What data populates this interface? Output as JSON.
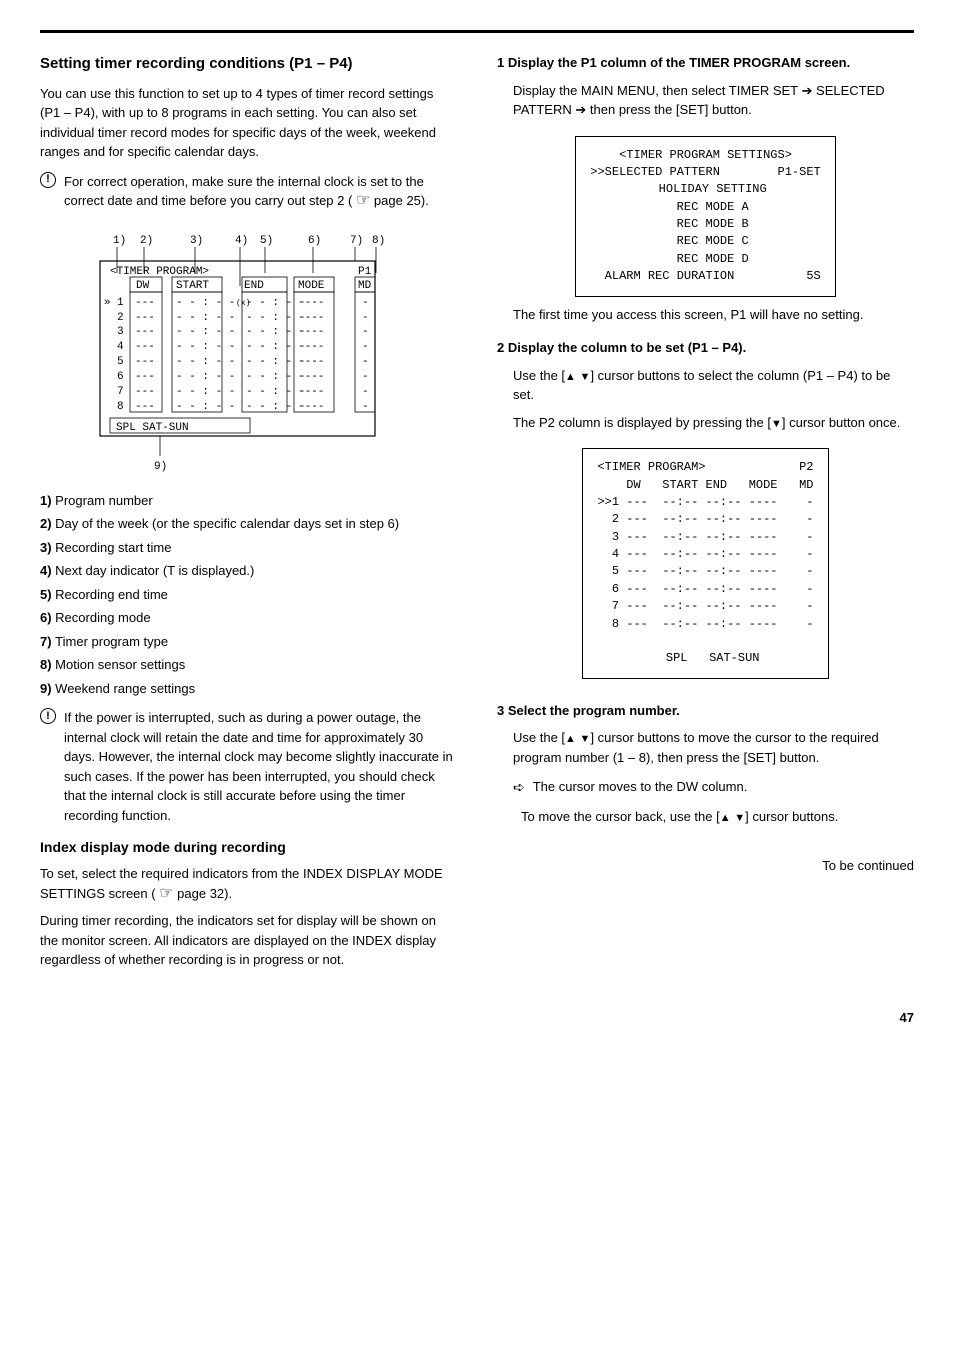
{
  "left": {
    "title": "Setting timer recording conditions (P1 – P4)",
    "intro": "You can use this function to set up to 4 types of timer record settings (P1 – P4), with up to 8 programs in each setting. You can also set individual timer record modes for specific days of the week, weekend ranges and for specific calendar days.",
    "note1": "For correct operation, make sure the internal clock is set to the correct date and time before you carry out step 2 (",
    "note1_page": "page 25).",
    "figure": {
      "markers": [
        "1)",
        "2)",
        "3)",
        "4)",
        "5)",
        "6)",
        "7)",
        "8)",
        "9)"
      ],
      "title": "<TIMER PROGRAM>",
      "p": "P1",
      "headers": [
        "DW",
        "START",
        "END",
        "MODE",
        "MD"
      ],
      "rows": [
        {
          "n": "1",
          "dw": "---",
          "s": "- - : - -",
          "e": "- - : - -",
          "m": "----",
          "md": "-"
        },
        {
          "n": "2",
          "dw": "---",
          "s": "- - : - -",
          "e": "- - : - -",
          "m": "----",
          "md": "-"
        },
        {
          "n": "3",
          "dw": "---",
          "s": "- - : - -",
          "e": "- - : - -",
          "m": "----",
          "md": "-"
        },
        {
          "n": "4",
          "dw": "---",
          "s": "- - : - -",
          "e": "- - : - -",
          "m": "----",
          "md": "-"
        },
        {
          "n": "5",
          "dw": "---",
          "s": "- - : - -",
          "e": "- - : - -",
          "m": "----",
          "md": "-"
        },
        {
          "n": "6",
          "dw": "---",
          "s": "- - : - -",
          "e": "- - : - -",
          "m": "----",
          "md": "-"
        },
        {
          "n": "7",
          "dw": "---",
          "s": "- - : - -",
          "e": "- - : - -",
          "m": "----",
          "md": "-"
        },
        {
          "n": "8",
          "dw": "---",
          "s": "- - : - -",
          "e": "- - : - -",
          "m": "----",
          "md": "-"
        }
      ],
      "spl": "SPL  SAT-SUN"
    },
    "defs": [
      {
        "k": "1)",
        "v": "Program number"
      },
      {
        "k": "2)",
        "v": "Day of the week (or the specific calendar days set in step 6)"
      },
      {
        "k": "3)",
        "v": "Recording start time"
      },
      {
        "k": "4)",
        "v": "Next day indicator (T is displayed.)"
      },
      {
        "k": "5)",
        "v": "Recording end time"
      },
      {
        "k": "6)",
        "v": "Recording mode"
      },
      {
        "k": "7)",
        "v": "Timer program type"
      },
      {
        "k": "8)",
        "v": "Motion sensor settings"
      },
      {
        "k": "9)",
        "v": "Weekend range settings"
      }
    ],
    "note2": "If the power is interrupted, such as during a power outage, the internal clock will retain the date and time for approximately 30 days. However, the internal clock may become slightly inaccurate in such cases. If the power has been interrupted, you should check that the internal clock is still accurate before using the timer recording function.",
    "index_title": "Index display mode during recording",
    "index_text1": "To set, select the required indicators from the INDEX DISPLAY MODE SETTINGS screen (",
    "index_page": "page 32).",
    "index_text2": "During timer recording, the indicators set for display will be shown on the monitor screen. All indicators are displayed on the INDEX display regardless of whether recording is in progress or not."
  },
  "right": {
    "step1_title": "Display the P1 column of the TIMER PROGRAM screen.",
    "step1_sub": "Display the MAIN MENU, then select TIMER SET",
    "step1_arrow1": "➔",
    "step1_sub2": "SELECTED PATTERN",
    "step1_sub3": "then press the [SET] button.",
    "osd1": [
      "<TIMER PROGRAM SETTINGS>",
      ">>SELECTED PATTERN        P1-SET",
      "  HOLIDAY SETTING",
      "  REC MODE A",
      "  REC MODE B",
      "  REC MODE C",
      "  REC MODE D",
      "  ALARM REC DURATION          5S"
    ],
    "step1_cont": "The first time you access this screen, P1 will have no setting.",
    "step2_title": "Display the column to be set (P1 – P4).",
    "step2_text1": "Use the [",
    "step2_text2": "] cursor buttons to select the column (P1 – P4) to be set.",
    "step2_text3": "The P2 column is displayed by pressing the [",
    "step2_text4": "] cursor button once.",
    "osd2_title": "<TIMER PROGRAM>             P2",
    "osd2_hdr": "    DW   START END   MODE   MD",
    "osd2_rows": [
      ">>1 ---  --:-- --:-- ----    -",
      "  2 ---  --:-- --:-- ----    -",
      "  3 ---  --:-- --:-- ----    -",
      "  4 ---  --:-- --:-- ----    -",
      "  5 ---  --:-- --:-- ----    -",
      "  6 ---  --:-- --:-- ----    -",
      "  7 ---  --:-- --:-- ----    -",
      "  8 ---  --:-- --:-- ----    -",
      "",
      "  SPL   SAT-SUN"
    ],
    "step3_title": "Select the program number.",
    "step3_text1": "Use the [",
    "step3_text2": "] cursor buttons to move the cursor to the required program number (1 – 8), then press the [SET] button.",
    "step3_note_icon": "➪",
    "step3_note": "The cursor moves to the DW column.",
    "step3_text3": "To move the cursor back, use the [",
    "step3_text4": "] cursor buttons.",
    "spacer_text": "To be continued"
  },
  "page_number": "47",
  "colors": {
    "text": "#000000",
    "bg": "#ffffff",
    "border": "#000000"
  }
}
